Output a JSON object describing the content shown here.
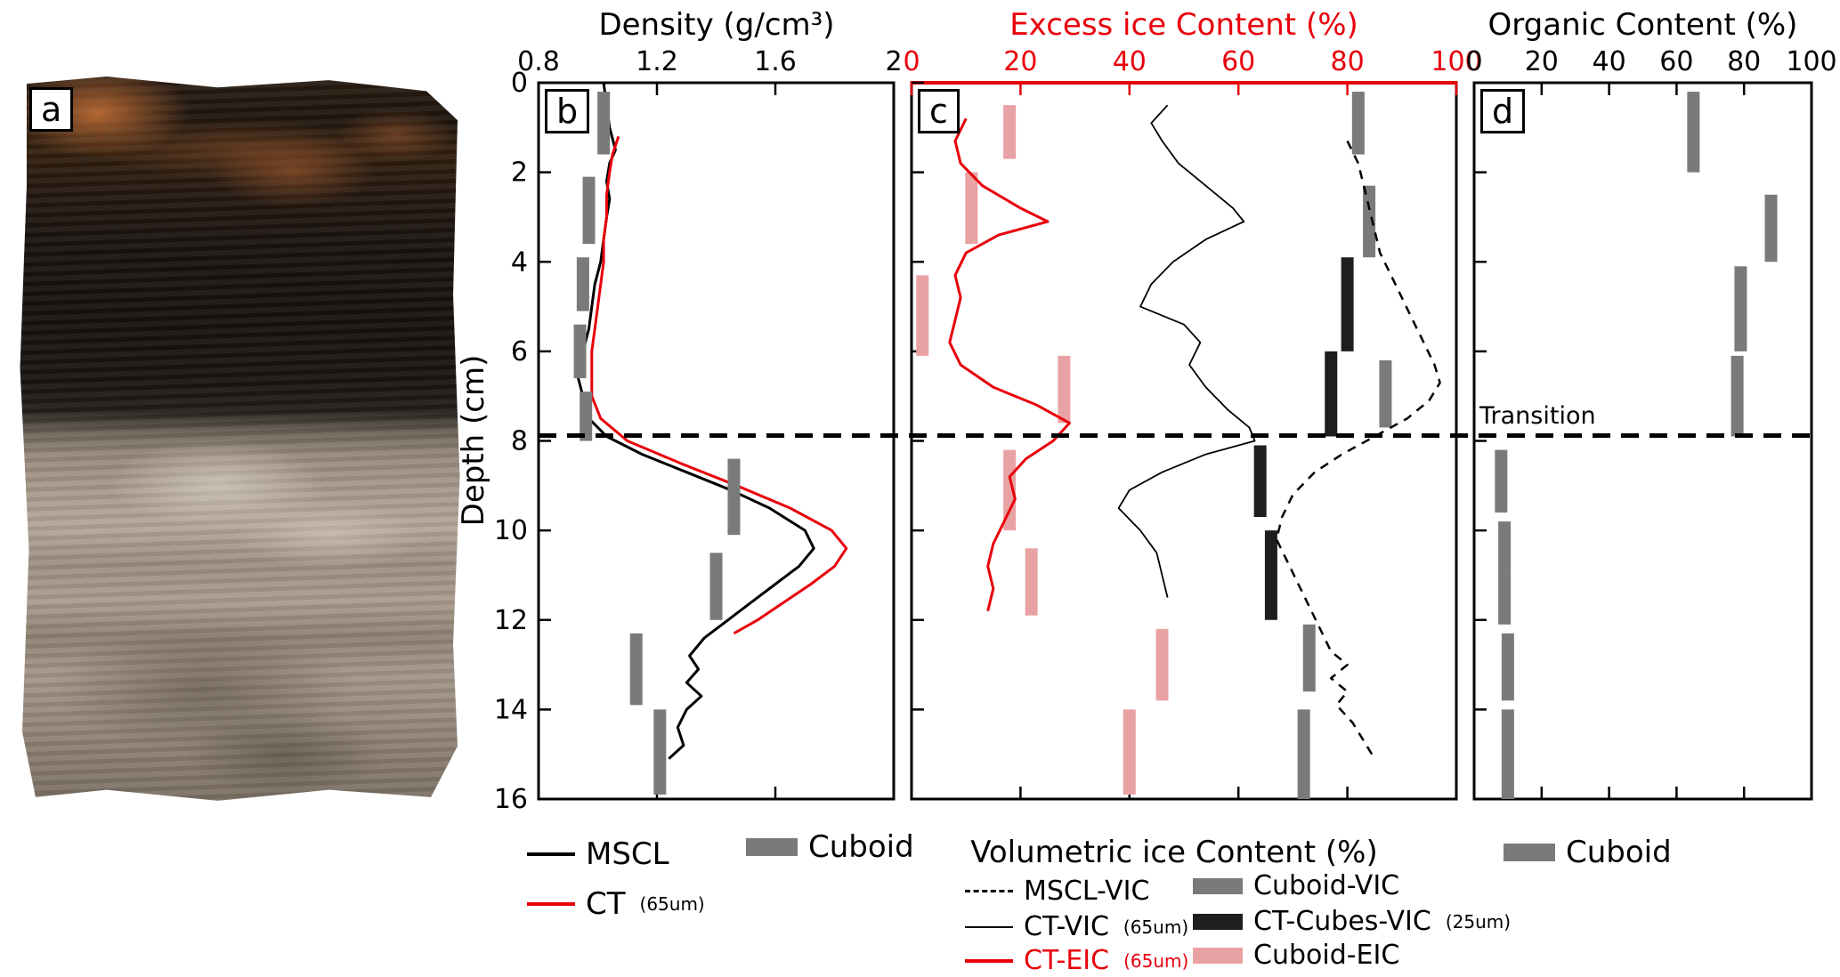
{
  "figure": {
    "panel_labels": {
      "a": "a",
      "b": "b",
      "c": "c",
      "d": "d"
    },
    "depth_axis_label": "Depth (cm)",
    "transition_label": "Transition",
    "colors": {
      "red": "#e8000b",
      "gray_bar": "#7a7a7a",
      "black_bar": "#1e1e1e",
      "pink_bar": "#e9a2a4"
    }
  },
  "legend_b": {
    "mscl": "MSCL",
    "ct": "CT",
    "ct_sub": "(65um)",
    "cuboid": "Cuboid"
  },
  "legend_c": {
    "title": "Volumetric ice Content (%)",
    "mscl_vic": "MSCL-VIC",
    "cuboid_vic": "Cuboid-VIC",
    "ct_vic": "CT-VIC",
    "ct_vic_sub": "(65um)",
    "ct_cubes": "CT-Cubes-VIC",
    "ct_cubes_sub": "(25um)",
    "ct_eic": "CT-EIC",
    "ct_eic_sub": "(65um)",
    "cuboid_eic": "Cuboid-EIC"
  },
  "legend_d": {
    "cuboid": "Cuboid"
  },
  "chart_data": [
    {
      "id": "density",
      "type": "line",
      "title": "Density (g/cm³)",
      "xlim": [
        0.8,
        2
      ],
      "xticks": [
        0.8,
        1.2,
        1.6,
        2
      ],
      "xtick_labels": [
        "0.8",
        "1.2",
        "1.6",
        "2"
      ],
      "ylim": [
        0,
        16
      ],
      "yticks": [
        0,
        2,
        4,
        6,
        8,
        10,
        12,
        14,
        16
      ],
      "ytick_labels": true,
      "ylabel": "Depth (cm)",
      "transition_depth": 7.9,
      "series": [
        {
          "name": "MSCL",
          "kind": "line",
          "color": "#000000",
          "width": 3,
          "points": [
            [
              0,
              1.02
            ],
            [
              0.5,
              1.03
            ],
            [
              1,
              1.04
            ],
            [
              1.5,
              1.06
            ],
            [
              1.8,
              1.04
            ],
            [
              2.2,
              1.03
            ],
            [
              2.6,
              1.04
            ],
            [
              3,
              1.03
            ],
            [
              3.5,
              1.02
            ],
            [
              4,
              1.01
            ],
            [
              4.5,
              0.99
            ],
            [
              5,
              0.98
            ],
            [
              5.5,
              0.97
            ],
            [
              6,
              0.95
            ],
            [
              6.5,
              0.93
            ],
            [
              7,
              0.95
            ],
            [
              7.5,
              0.97
            ],
            [
              7.9,
              1.03
            ],
            [
              8.3,
              1.15
            ],
            [
              8.7,
              1.3
            ],
            [
              9.1,
              1.45
            ],
            [
              9.5,
              1.58
            ],
            [
              10,
              1.7
            ],
            [
              10.4,
              1.73
            ],
            [
              10.8,
              1.68
            ],
            [
              11.2,
              1.6
            ],
            [
              11.6,
              1.52
            ],
            [
              12,
              1.44
            ],
            [
              12.4,
              1.36
            ],
            [
              12.8,
              1.31
            ],
            [
              13.1,
              1.34
            ],
            [
              13.4,
              1.3
            ],
            [
              13.7,
              1.35
            ],
            [
              14,
              1.3
            ],
            [
              14.4,
              1.27
            ],
            [
              14.8,
              1.29
            ],
            [
              15.1,
              1.24
            ]
          ]
        },
        {
          "name": "CT (65um)",
          "kind": "line",
          "color": "#e8000b",
          "width": 3,
          "points": [
            [
              1.2,
              1.07
            ],
            [
              1.6,
              1.05
            ],
            [
              2,
              1.04
            ],
            [
              2.5,
              1.03
            ],
            [
              3,
              1.03
            ],
            [
              3.5,
              1.02
            ],
            [
              4,
              1.02
            ],
            [
              4.5,
              1.01
            ],
            [
              5,
              1.0
            ],
            [
              5.5,
              0.99
            ],
            [
              6,
              0.98
            ],
            [
              6.5,
              0.98
            ],
            [
              7,
              0.98
            ],
            [
              7.5,
              1.01
            ],
            [
              8,
              1.1
            ],
            [
              8.5,
              1.28
            ],
            [
              9,
              1.47
            ],
            [
              9.5,
              1.65
            ],
            [
              10,
              1.79
            ],
            [
              10.4,
              1.84
            ],
            [
              10.8,
              1.8
            ],
            [
              11.2,
              1.72
            ],
            [
              11.6,
              1.63
            ],
            [
              12,
              1.54
            ],
            [
              12.3,
              1.46
            ]
          ]
        },
        {
          "name": "Cuboid",
          "kind": "bars",
          "color": "#7a7a7a",
          "bars": [
            [
              0.2,
              1.6,
              1.02
            ],
            [
              2.1,
              3.6,
              0.97
            ],
            [
              3.9,
              5.1,
              0.95
            ],
            [
              5.4,
              6.6,
              0.94
            ],
            [
              6.9,
              8.0,
              0.96
            ],
            [
              8.4,
              10.1,
              1.46
            ],
            [
              10.5,
              12.0,
              1.4
            ],
            [
              12.3,
              13.9,
              1.13
            ],
            [
              14.0,
              15.9,
              1.21
            ]
          ]
        }
      ]
    },
    {
      "id": "ice-content",
      "type": "line",
      "title": "Excess ice Content (%)",
      "title_color": "#e8000b",
      "bottom_axis_label": "Volumetric ice Content (%)",
      "xlim": [
        0,
        100
      ],
      "xticks": [
        0,
        20,
        40,
        60,
        80,
        100
      ],
      "xtick_labels": [
        "0",
        "20",
        "40",
        "60",
        "80",
        "100"
      ],
      "top_axis_color": "#e8000b",
      "ylim": [
        0,
        16
      ],
      "yticks": [
        0,
        2,
        4,
        6,
        8,
        10,
        12,
        14,
        16
      ],
      "ytick_labels": false,
      "transition_depth": 7.9,
      "series": [
        {
          "name": "Cuboid-VIC",
          "kind": "bars",
          "color": "#7a7a7a",
          "bars": [
            [
              0.2,
              1.6,
              82
            ],
            [
              2.3,
              3.9,
              84
            ],
            [
              6.2,
              7.7,
              87
            ],
            [
              12.1,
              13.6,
              73
            ],
            [
              14.0,
              16.0,
              72
            ]
          ]
        },
        {
          "name": "CT-Cubes-VIC (25um)",
          "kind": "bars",
          "color": "#1e1e1e",
          "bars": [
            [
              3.9,
              6.0,
              80
            ],
            [
              6.0,
              7.9,
              77
            ],
            [
              8.1,
              9.7,
              64
            ],
            [
              10.0,
              12.0,
              66
            ]
          ]
        },
        {
          "name": "Cuboid-EIC",
          "kind": "bars",
          "color": "#e9a2a4",
          "bars": [
            [
              0.5,
              1.7,
              18
            ],
            [
              2.0,
              3.6,
              11
            ],
            [
              4.3,
              6.1,
              2
            ],
            [
              6.1,
              7.6,
              28
            ],
            [
              8.2,
              10.0,
              18
            ],
            [
              10.4,
              11.9,
              22
            ],
            [
              12.2,
              13.8,
              46
            ],
            [
              14.0,
              15.9,
              40
            ]
          ]
        },
        {
          "name": "MSCL-VIC",
          "kind": "line",
          "color": "#000000",
          "width": 2.5,
          "dash": "10 8",
          "points": [
            [
              1.3,
              80
            ],
            [
              1.8,
              82
            ],
            [
              2.3,
              83
            ],
            [
              2.8,
              84
            ],
            [
              3.3,
              85
            ],
            [
              3.8,
              86
            ],
            [
              4.3,
              88
            ],
            [
              4.8,
              90
            ],
            [
              5.3,
              92
            ],
            [
              5.8,
              94
            ],
            [
              6.3,
              96
            ],
            [
              6.7,
              97
            ],
            [
              7.1,
              95
            ],
            [
              7.5,
              91
            ],
            [
              7.9,
              85
            ],
            [
              8.3,
              79
            ],
            [
              8.7,
              74
            ],
            [
              9.2,
              70
            ],
            [
              9.7,
              68
            ],
            [
              10.2,
              67
            ],
            [
              10.7,
              69
            ],
            [
              11.2,
              71
            ],
            [
              11.7,
              73
            ],
            [
              12.2,
              75
            ],
            [
              12.7,
              77
            ],
            [
              13.0,
              80
            ],
            [
              13.3,
              77
            ],
            [
              13.6,
              80
            ],
            [
              13.9,
              78
            ],
            [
              14.3,
              81
            ],
            [
              14.7,
              83
            ],
            [
              15.1,
              85
            ]
          ]
        },
        {
          "name": "CT-VIC (65um)",
          "kind": "line",
          "color": "#000000",
          "width": 1.8,
          "points": [
            [
              0.5,
              47
            ],
            [
              0.9,
              44
            ],
            [
              1.3,
              46
            ],
            [
              1.8,
              49
            ],
            [
              2.3,
              54
            ],
            [
              2.8,
              59
            ],
            [
              3.1,
              61
            ],
            [
              3.5,
              54
            ],
            [
              4,
              48
            ],
            [
              4.5,
              44
            ],
            [
              5,
              42
            ],
            [
              5.4,
              50
            ],
            [
              5.8,
              53
            ],
            [
              6.3,
              51
            ],
            [
              6.8,
              54
            ],
            [
              7.3,
              58
            ],
            [
              7.7,
              62
            ],
            [
              8,
              63
            ],
            [
              8.3,
              54
            ],
            [
              8.7,
              46
            ],
            [
              9.1,
              40
            ],
            [
              9.5,
              38
            ],
            [
              10,
              42
            ],
            [
              10.5,
              45
            ],
            [
              11,
              46
            ],
            [
              11.5,
              47
            ]
          ]
        },
        {
          "name": "CT-EIC (65um)",
          "kind": "line",
          "color": "#e8000b",
          "width": 3,
          "points": [
            [
              0.8,
              10
            ],
            [
              1.3,
              8
            ],
            [
              1.8,
              9
            ],
            [
              2.3,
              13
            ],
            [
              2.8,
              20
            ],
            [
              3.1,
              25
            ],
            [
              3.4,
              16
            ],
            [
              3.8,
              10
            ],
            [
              4.3,
              8
            ],
            [
              4.8,
              9
            ],
            [
              5.3,
              8
            ],
            [
              5.8,
              7
            ],
            [
              6.3,
              9
            ],
            [
              6.8,
              15
            ],
            [
              7.2,
              23
            ],
            [
              7.6,
              29
            ],
            [
              8,
              26
            ],
            [
              8.4,
              21
            ],
            [
              8.8,
              18
            ],
            [
              9.3,
              19
            ],
            [
              9.8,
              17
            ],
            [
              10.3,
              15
            ],
            [
              10.8,
              14
            ],
            [
              11.3,
              15
            ],
            [
              11.8,
              14
            ]
          ]
        }
      ]
    },
    {
      "id": "organic-content",
      "type": "bar",
      "title": "Organic Content (%)",
      "xlim": [
        0,
        100
      ],
      "xticks": [
        0,
        20,
        40,
        60,
        80,
        100
      ],
      "xtick_labels": [
        "0",
        "20",
        "40",
        "60",
        "80",
        "100"
      ],
      "ylim": [
        0,
        16
      ],
      "yticks": [
        0,
        2,
        4,
        6,
        8,
        10,
        12,
        14,
        16
      ],
      "ytick_labels": false,
      "transition_depth": 7.9,
      "series": [
        {
          "name": "Cuboid",
          "kind": "bars",
          "color": "#7a7a7a",
          "bars": [
            [
              0.2,
              2.0,
              65
            ],
            [
              2.5,
              4.0,
              88
            ],
            [
              4.1,
              6.0,
              79
            ],
            [
              6.1,
              7.9,
              78
            ],
            [
              8.2,
              9.6,
              8
            ],
            [
              9.8,
              11.0,
              9
            ],
            [
              11.0,
              12.1,
              9
            ],
            [
              12.3,
              13.8,
              10
            ],
            [
              14.0,
              16.0,
              10
            ]
          ]
        }
      ]
    }
  ]
}
